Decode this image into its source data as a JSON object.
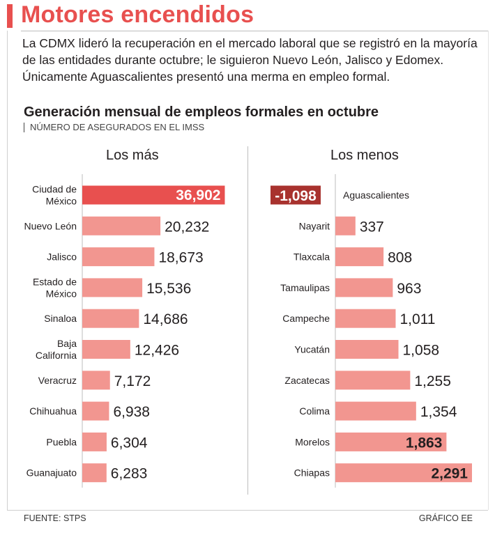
{
  "header": {
    "title": "Motores encendidos",
    "intro": "La CDMX lideró la recuperación en el mercado laboral que se registró en la mayoría de las entidades durante octubre; le siguieron Nuevo León, Jalisco y Edomex. Únicamente Aguascalientes presentó una merma en empleo formal."
  },
  "footer": {
    "source": "FUENTE: STPS",
    "credit": "GRÁFICO EE"
  },
  "colors": {
    "accent": "#e8504f",
    "bar": "#f29690",
    "highlight_pos": "#e8504f",
    "highlight_neg": "#a8322e"
  },
  "chart_data": {
    "type": "bar",
    "title": "Generación mensual de empleos formales en octubre",
    "subtitle": "NÚMERO DE ASEGURADOS EN EL IMSS",
    "panels": [
      {
        "heading": "Los más",
        "categories": [
          [
            "Ciudad de",
            "México"
          ],
          [
            "Nuevo León"
          ],
          [
            "Jalisco"
          ],
          [
            "Estado de",
            "México"
          ],
          [
            "Sinaloa"
          ],
          [
            "Baja",
            "California"
          ],
          [
            "Veracruz"
          ],
          [
            "Chihuahua"
          ],
          [
            "Puebla"
          ],
          [
            "Guanajuato"
          ]
        ],
        "values": [
          36902,
          20232,
          18673,
          15536,
          14686,
          12426,
          7172,
          6938,
          6304,
          6283
        ],
        "labels": [
          "36,902",
          "20,232",
          "18,673",
          "15,536",
          "14,686",
          "12,426",
          "7,172",
          "6,938",
          "6,304",
          "6,283"
        ]
      },
      {
        "heading": "Los menos",
        "categories": [
          [
            "Aguascalientes"
          ],
          [
            "Nayarit"
          ],
          [
            "Tlaxcala"
          ],
          [
            "Tamaulipas"
          ],
          [
            "Campeche"
          ],
          [
            "Yucatán"
          ],
          [
            "Zacatecas"
          ],
          [
            "Colima"
          ],
          [
            "Morelos"
          ],
          [
            "Chiapas"
          ]
        ],
        "values": [
          -1098,
          337,
          808,
          963,
          1011,
          1058,
          1255,
          1354,
          1863,
          2291
        ],
        "labels": [
          "-1,098",
          "337",
          "808",
          "963",
          "1,011",
          "1,058",
          "1,255",
          "1,354",
          "1,863",
          "2,291"
        ]
      }
    ]
  }
}
